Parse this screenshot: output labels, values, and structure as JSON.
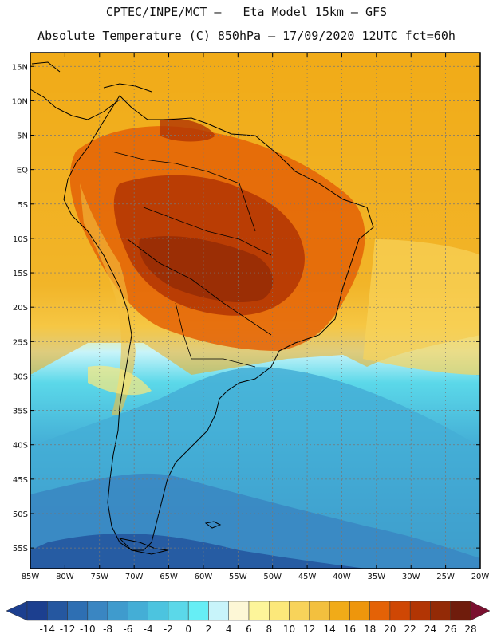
{
  "header": {
    "line1": "CPTEC/INPE/MCT –   Eta Model 15km – GFS",
    "line2": "Absolute Temperature (C) 850hPa – 17/09/2020 12UTC fct=60h"
  },
  "map": {
    "lon_range": [
      -85,
      -20
    ],
    "lat_range": [
      -58,
      17
    ],
    "lat_ticks": [
      {
        "value": 15,
        "label": "15N"
      },
      {
        "value": 10,
        "label": "10N"
      },
      {
        "value": 5,
        "label": "5N"
      },
      {
        "value": 0,
        "label": "EQ"
      },
      {
        "value": -5,
        "label": "5S"
      },
      {
        "value": -10,
        "label": "10S"
      },
      {
        "value": -15,
        "label": "15S"
      },
      {
        "value": -20,
        "label": "20S"
      },
      {
        "value": -25,
        "label": "25S"
      },
      {
        "value": -30,
        "label": "30S"
      },
      {
        "value": -35,
        "label": "35S"
      },
      {
        "value": -40,
        "label": "40S"
      },
      {
        "value": -45,
        "label": "45S"
      },
      {
        "value": -50,
        "label": "50S"
      },
      {
        "value": -55,
        "label": "55S"
      }
    ],
    "lon_ticks": [
      {
        "value": -85,
        "label": "85W"
      },
      {
        "value": -80,
        "label": "80W"
      },
      {
        "value": -75,
        "label": "75W"
      },
      {
        "value": -70,
        "label": "70W"
      },
      {
        "value": -65,
        "label": "65W"
      },
      {
        "value": -60,
        "label": "60W"
      },
      {
        "value": -55,
        "label": "55W"
      },
      {
        "value": -50,
        "label": "50W"
      },
      {
        "value": -45,
        "label": "45W"
      },
      {
        "value": -40,
        "label": "40W"
      },
      {
        "value": -35,
        "label": "35W"
      },
      {
        "value": -30,
        "label": "30W"
      },
      {
        "value": -25,
        "label": "25W"
      },
      {
        "value": -20,
        "label": "20W"
      }
    ],
    "gridlines": true
  },
  "colorbar": {
    "labels": [
      "-14",
      "-12",
      "-10",
      "-8",
      "-6",
      "-4",
      "-2",
      "0",
      "2",
      "4",
      "6",
      "8",
      "10",
      "12",
      "14",
      "16",
      "18",
      "20",
      "22",
      "24",
      "26",
      "28"
    ],
    "colors": [
      "#1c3f8f",
      "#2557a0",
      "#2e6fb3",
      "#3a86c2",
      "#3f9bcd",
      "#44aed6",
      "#4cc4df",
      "#5bd8e9",
      "#66eef5",
      "#c8f4fa",
      "#fdf7d6",
      "#fdf59a",
      "#fce87a",
      "#f8d35a",
      "#f3c03e",
      "#f1ab18",
      "#ee960c",
      "#e46206",
      "#cf4704",
      "#b23504",
      "#932a06",
      "#6f1c0c"
    ],
    "under_color": "#1c3f8f",
    "over_color": "#7a1030"
  }
}
